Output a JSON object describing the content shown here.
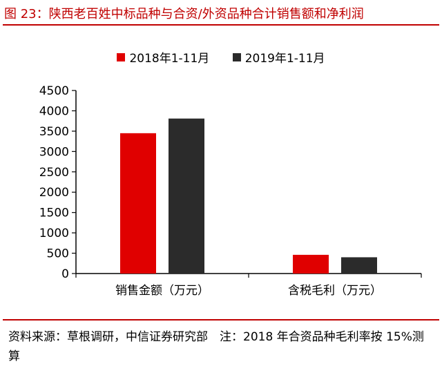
{
  "title": "图 23：陕西老百姓中标品种与合资/外资品种合计销售额和净利润",
  "source_note": "资料来源：草根调研，中信证券研究部　注：2018 年合资品种毛利率按 15%测算",
  "colors": {
    "accent": "#c00000",
    "series1": "#e00000",
    "series2": "#2b2b2b",
    "axis": "#000000"
  },
  "chart_data": {
    "type": "bar",
    "categories": [
      "销售金额（万元）",
      "含税毛利（万元）"
    ],
    "series": [
      {
        "name": "2018年1-11月",
        "values": [
          3450,
          460
        ]
      },
      {
        "name": "2019年1-11月",
        "values": [
          3810,
          400
        ]
      }
    ],
    "ylim": [
      0,
      4500
    ],
    "yticks": [
      0,
      500,
      1000,
      1500,
      2000,
      2500,
      3000,
      3500,
      4000,
      4500
    ],
    "title": "",
    "xlabel": "",
    "ylabel": "",
    "legend": "top-center",
    "grid": false
  }
}
